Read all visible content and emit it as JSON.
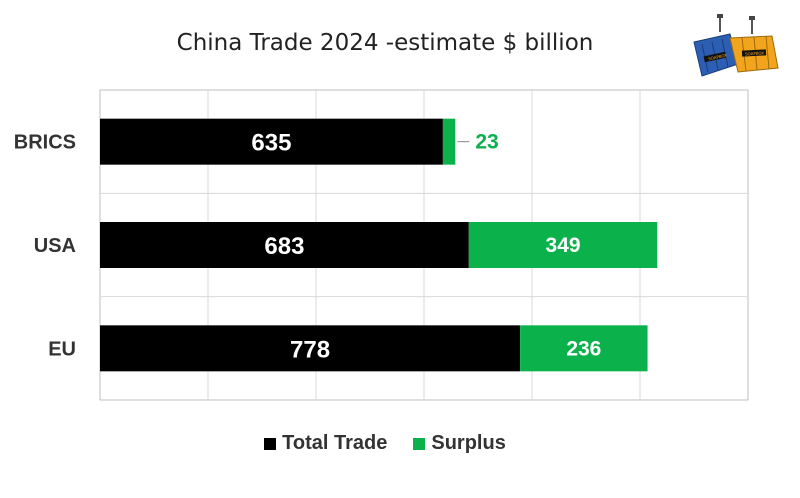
{
  "colors": {
    "total": "#000000",
    "surplus": "#0bb14b",
    "grid": "#d9d9d9",
    "axis": "#bfbfbf"
  },
  "logo": {
    "icon": "shipping-containers-logo",
    "text": "SOAPBOX"
  },
  "chart_data": {
    "type": "bar",
    "orientation": "horizontal",
    "stacked": true,
    "title": "China Trade 2024 -estimate $ billion",
    "categories": [
      "BRICS",
      "USA",
      "EU"
    ],
    "series": [
      {
        "name": "Total Trade",
        "color": "#000000",
        "values": [
          635,
          683,
          778
        ]
      },
      {
        "name": "Surplus",
        "color": "#0bb14b",
        "values": [
          23,
          349,
          236
        ]
      }
    ],
    "xlim": [
      0,
      1200
    ],
    "grid": true,
    "legend": "bottom"
  }
}
